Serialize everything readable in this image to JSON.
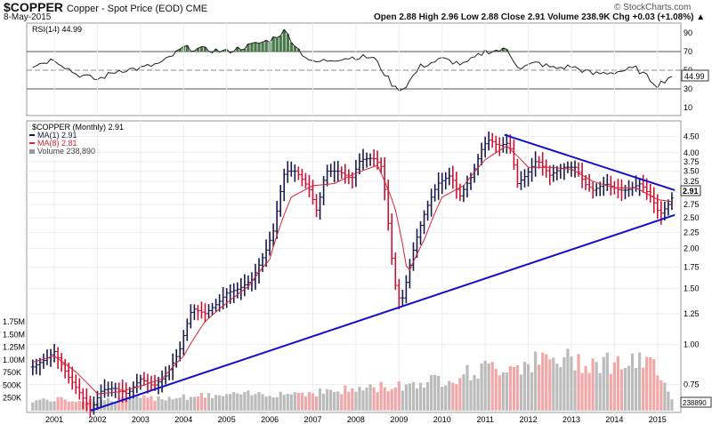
{
  "header": {
    "symbol": "$COPPER",
    "subtitle": "Copper - Spot Price (EOD) CME",
    "date": "8-May-2015",
    "credit": "© StockCharts.com",
    "ohlc": "Open 2.88 High 2.96 Low 2.88 Close 2.91 Volume 238.9K Chg +0.03 (+1.08%) ▲"
  },
  "legend": {
    "rsi": "RSI(14) 44.99",
    "main": "$COPPER (Monthly) 2.91",
    "ma1": "MA(1) 2.91",
    "ma8": "MA(8) 2.81",
    "volume": "Volume 238,890"
  },
  "colors": {
    "up": "#1a1a4a",
    "down": "#cc1133",
    "ma": "#dd2233",
    "trend": "#1111cc",
    "vol_up": "#bbbbbb",
    "vol_down": "#f2a8a8",
    "rsi_fill": "#4a7a4a"
  },
  "chart_data": {
    "type": "line",
    "x_labels": [
      "2001",
      "2002",
      "2003",
      "2004",
      "2005",
      "2006",
      "2007",
      "2008",
      "2009",
      "2010",
      "2011",
      "2012",
      "2013",
      "2014",
      "2015"
    ],
    "price_axis": {
      "scale": "log",
      "ticks": [
        "4.50",
        "4.00",
        "3.75",
        "3.50",
        "3.25",
        "3.00",
        "2.75",
        "2.50",
        "2.25",
        "2.00",
        "1.75",
        "1.50",
        "1.25",
        "1.00",
        "0.75"
      ],
      "last_label": "2.91"
    },
    "rsi_axis": {
      "range": [
        0,
        100
      ],
      "ticks": [
        "90",
        "70",
        "50",
        "30",
        "10"
      ],
      "last_label": "44.99"
    },
    "volume_axis": {
      "ticks": [
        "1.75M",
        "1.50M",
        "1.25M",
        "1.00M",
        "750K",
        "500K",
        "250K"
      ],
      "last_label": "238890"
    },
    "price_series": [
      [
        2000.5,
        0.85
      ],
      [
        2000.8,
        0.9
      ],
      [
        2001.0,
        0.95
      ],
      [
        2001.3,
        0.8
      ],
      [
        2001.6,
        0.7
      ],
      [
        2001.85,
        0.62
      ],
      [
        2002.1,
        0.72
      ],
      [
        2002.4,
        0.73
      ],
      [
        2002.7,
        0.7
      ],
      [
        2003.0,
        0.78
      ],
      [
        2003.3,
        0.74
      ],
      [
        2003.6,
        0.8
      ],
      [
        2003.9,
        0.95
      ],
      [
        2004.2,
        1.3
      ],
      [
        2004.5,
        1.25
      ],
      [
        2004.8,
        1.35
      ],
      [
        2005.0,
        1.45
      ],
      [
        2005.3,
        1.5
      ],
      [
        2005.6,
        1.6
      ],
      [
        2005.9,
        1.95
      ],
      [
        2006.1,
        2.3
      ],
      [
        2006.35,
        3.5
      ],
      [
        2006.6,
        3.5
      ],
      [
        2006.9,
        3.1
      ],
      [
        2007.1,
        2.6
      ],
      [
        2007.3,
        3.5
      ],
      [
        2007.6,
        3.5
      ],
      [
        2007.9,
        3.3
      ],
      [
        2008.1,
        3.8
      ],
      [
        2008.4,
        3.85
      ],
      [
        2008.6,
        3.6
      ],
      [
        2008.8,
        2.0
      ],
      [
        2008.95,
        1.4
      ],
      [
        2009.1,
        1.4
      ],
      [
        2009.3,
        1.9
      ],
      [
        2009.6,
        2.6
      ],
      [
        2009.9,
        3.2
      ],
      [
        2010.2,
        3.4
      ],
      [
        2010.4,
        2.9
      ],
      [
        2010.7,
        3.4
      ],
      [
        2010.95,
        4.2
      ],
      [
        2011.1,
        4.4
      ],
      [
        2011.3,
        4.2
      ],
      [
        2011.55,
        4.3
      ],
      [
        2011.75,
        3.2
      ],
      [
        2011.95,
        3.4
      ],
      [
        2012.2,
        3.8
      ],
      [
        2012.5,
        3.4
      ],
      [
        2012.8,
        3.6
      ],
      [
        2013.1,
        3.6
      ],
      [
        2013.3,
        3.2
      ],
      [
        2013.5,
        3.05
      ],
      [
        2013.8,
        3.2
      ],
      [
        2014.1,
        3.05
      ],
      [
        2014.3,
        3.05
      ],
      [
        2014.6,
        3.2
      ],
      [
        2014.85,
        2.9
      ],
      [
        2015.05,
        2.55
      ],
      [
        2015.25,
        2.75
      ],
      [
        2015.35,
        2.91
      ]
    ],
    "ma8_series": [
      [
        2000.5,
        0.88
      ],
      [
        2001.0,
        0.92
      ],
      [
        2001.5,
        0.82
      ],
      [
        2002.0,
        0.7
      ],
      [
        2002.5,
        0.71
      ],
      [
        2003.0,
        0.74
      ],
      [
        2003.5,
        0.78
      ],
      [
        2004.0,
        0.92
      ],
      [
        2004.5,
        1.18
      ],
      [
        2005.0,
        1.35
      ],
      [
        2005.5,
        1.52
      ],
      [
        2006.0,
        1.85
      ],
      [
        2006.5,
        2.9
      ],
      [
        2007.0,
        3.15
      ],
      [
        2007.5,
        3.2
      ],
      [
        2008.0,
        3.45
      ],
      [
        2008.5,
        3.65
      ],
      [
        2008.9,
        2.7
      ],
      [
        2009.2,
        1.65
      ],
      [
        2009.6,
        2.15
      ],
      [
        2010.0,
        2.9
      ],
      [
        2010.5,
        3.15
      ],
      [
        2011.0,
        3.8
      ],
      [
        2011.5,
        4.2
      ],
      [
        2012.0,
        3.6
      ],
      [
        2012.5,
        3.6
      ],
      [
        2013.0,
        3.55
      ],
      [
        2013.5,
        3.25
      ],
      [
        2014.0,
        3.1
      ],
      [
        2014.5,
        3.1
      ],
      [
        2015.0,
        2.85
      ],
      [
        2015.35,
        2.81
      ]
    ],
    "rsi_series": [
      [
        2000.5,
        55
      ],
      [
        2001.0,
        62
      ],
      [
        2001.5,
        46
      ],
      [
        2002.0,
        40
      ],
      [
        2002.5,
        50
      ],
      [
        2003.0,
        52
      ],
      [
        2003.5,
        58
      ],
      [
        2004.0,
        74
      ],
      [
        2004.5,
        72
      ],
      [
        2005.0,
        70
      ],
      [
        2005.5,
        76
      ],
      [
        2006.0,
        82
      ],
      [
        2006.35,
        92
      ],
      [
        2006.7,
        70
      ],
      [
        2007.0,
        58
      ],
      [
        2007.5,
        62
      ],
      [
        2008.0,
        64
      ],
      [
        2008.4,
        64
      ],
      [
        2008.9,
        31
      ],
      [
        2009.1,
        30
      ],
      [
        2009.5,
        54
      ],
      [
        2010.0,
        62
      ],
      [
        2010.5,
        56
      ],
      [
        2011.0,
        70
      ],
      [
        2011.5,
        72
      ],
      [
        2011.8,
        52
      ],
      [
        2012.2,
        58
      ],
      [
        2012.6,
        52
      ],
      [
        2013.0,
        54
      ],
      [
        2013.5,
        46
      ],
      [
        2014.0,
        48
      ],
      [
        2014.5,
        52
      ],
      [
        2015.0,
        34
      ],
      [
        2015.35,
        45
      ]
    ],
    "volume_series": [
      [
        2000.5,
        0.2
      ],
      [
        2001.0,
        0.22
      ],
      [
        2002.0,
        0.2
      ],
      [
        2003.0,
        0.24
      ],
      [
        2004.0,
        0.28
      ],
      [
        2005.0,
        0.3
      ],
      [
        2006.0,
        0.34
      ],
      [
        2007.0,
        0.36
      ],
      [
        2008.0,
        0.42
      ],
      [
        2009.0,
        0.5
      ],
      [
        2010.0,
        0.62
      ],
      [
        2011.0,
        0.82
      ],
      [
        2012.0,
        0.95
      ],
      [
        2013.0,
        1.0
      ],
      [
        2014.0,
        0.95
      ],
      [
        2015.0,
        0.9
      ],
      [
        2015.35,
        0.24
      ]
    ],
    "trendlines": [
      {
        "name": "support",
        "points": [
          [
            2001.85,
            0.62
          ],
          [
            2015.4,
            2.55
          ]
        ]
      },
      {
        "name": "resistance",
        "points": [
          [
            2011.45,
            4.55
          ],
          [
            2015.4,
            3.05
          ]
        ]
      }
    ]
  }
}
